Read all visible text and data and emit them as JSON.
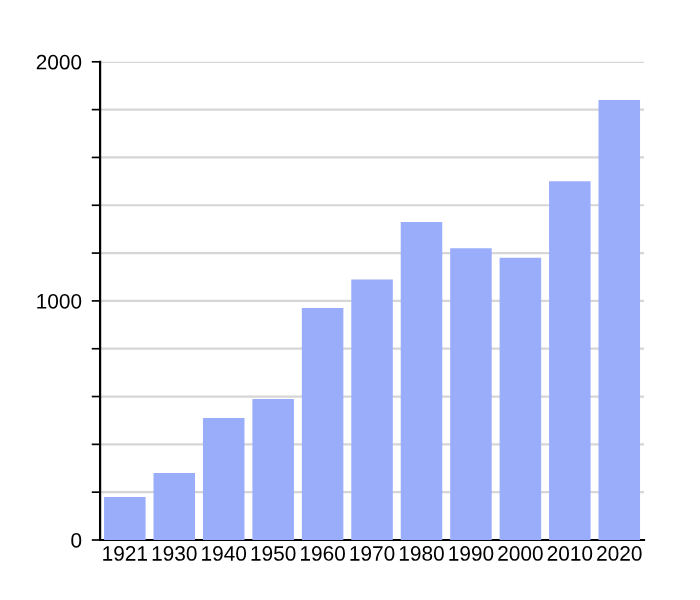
{
  "chart_data": {
    "type": "bar",
    "categories": [
      "1921",
      "1930",
      "1940",
      "1950",
      "1960",
      "1970",
      "1980",
      "1990",
      "2000",
      "2010",
      "2020"
    ],
    "values": [
      180,
      280,
      510,
      590,
      970,
      1090,
      1330,
      1220,
      1180,
      1500,
      1840
    ],
    "color": "#9aadfb",
    "ylim": [
      0,
      2000
    ],
    "yticks": [
      0,
      {
        "value": 200,
        "label": null
      },
      {
        "value": 400,
        "label": null
      },
      {
        "value": 600,
        "label": null
      },
      {
        "value": 800,
        "label": null
      },
      1000,
      {
        "value": 1200,
        "label": null
      },
      {
        "value": 1400,
        "label": null
      },
      {
        "value": 1600,
        "label": null
      },
      {
        "value": 1800,
        "label": null
      },
      2000
    ],
    "grid": "y",
    "legend": false
  }
}
